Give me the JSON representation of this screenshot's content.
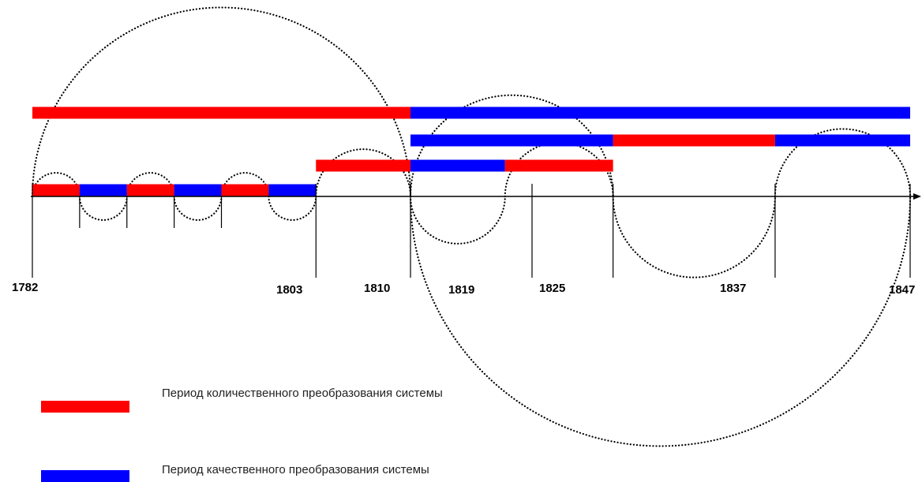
{
  "colors": {
    "quantitative": "#ff0000",
    "qualitative": "#0000ff",
    "axis": "#000000",
    "arc": "#000000"
  },
  "axis": {
    "year_min": 1782,
    "year_max": 1847,
    "tick_labels": [
      {
        "year": 1782,
        "label": "1782"
      },
      {
        "year": 1803,
        "label": "1803"
      },
      {
        "year": 1810,
        "label": "1810"
      },
      {
        "year": 1819,
        "label": "1819"
      },
      {
        "year": 1825,
        "label": "1825"
      },
      {
        "year": 1837,
        "label": "1837"
      },
      {
        "year": 1847,
        "label": "1847"
      }
    ],
    "minor_ticks": [
      1785.5,
      1789,
      1792.5,
      1796
    ]
  },
  "periods": [
    {
      "level": 3,
      "type": "quantitative",
      "start": 1782,
      "end": 1810
    },
    {
      "level": 3,
      "type": "qualitative",
      "start": 1810,
      "end": 1847
    },
    {
      "level": 2,
      "type": "qualitative",
      "start": 1810,
      "end": 1825
    },
    {
      "level": 2,
      "type": "quantitative",
      "start": 1825,
      "end": 1837
    },
    {
      "level": 2,
      "type": "qualitative",
      "start": 1837,
      "end": 1847
    },
    {
      "level": 1,
      "type": "quantitative",
      "start": 1803,
      "end": 1810
    },
    {
      "level": 1,
      "type": "qualitative",
      "start": 1810,
      "end": 1817
    },
    {
      "level": 1,
      "type": "quantitative",
      "start": 1817,
      "end": 1825
    },
    {
      "level": 0,
      "type": "quantitative",
      "start": 1782,
      "end": 1785.5
    },
    {
      "level": 0,
      "type": "qualitative",
      "start": 1785.5,
      "end": 1789
    },
    {
      "level": 0,
      "type": "quantitative",
      "start": 1789,
      "end": 1792.5
    },
    {
      "level": 0,
      "type": "qualitative",
      "start": 1792.5,
      "end": 1796
    },
    {
      "level": 0,
      "type": "quantitative",
      "start": 1796,
      "end": 1799.5
    },
    {
      "level": 0,
      "type": "qualitative",
      "start": 1799.5,
      "end": 1803
    }
  ],
  "cycles": [
    {
      "start": 1782,
      "end": 1785.5,
      "side": "above"
    },
    {
      "start": 1785.5,
      "end": 1789,
      "side": "below"
    },
    {
      "start": 1789,
      "end": 1792.5,
      "side": "above"
    },
    {
      "start": 1792.5,
      "end": 1796,
      "side": "below"
    },
    {
      "start": 1796,
      "end": 1799.5,
      "side": "above"
    },
    {
      "start": 1799.5,
      "end": 1803,
      "side": "below"
    },
    {
      "start": 1803,
      "end": 1810,
      "side": "above"
    },
    {
      "start": 1810,
      "end": 1817,
      "side": "below"
    },
    {
      "start": 1817,
      "end": 1825,
      "side": "above"
    },
    {
      "start": 1825,
      "end": 1837,
      "side": "below"
    },
    {
      "start": 1837,
      "end": 1847,
      "side": "above"
    },
    {
      "start": 1810,
      "end": 1825,
      "side": "above"
    },
    {
      "start": 1782,
      "end": 1810,
      "side": "above"
    },
    {
      "start": 1810,
      "end": 1847,
      "side": "below"
    }
  ],
  "legend": [
    {
      "type": "quantitative",
      "text": "Период количественного преобразования системы"
    },
    {
      "type": "qualitative",
      "text": "Период качественного преобразования системы"
    }
  ]
}
